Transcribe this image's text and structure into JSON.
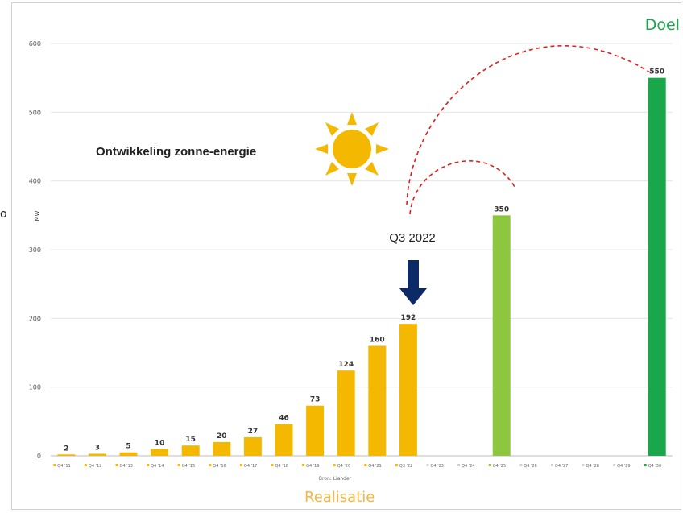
{
  "chart_data": {
    "type": "bar",
    "title": "Ontwikkeling zonne-energie",
    "ylabel": "MW",
    "ylim": [
      0,
      600
    ],
    "yticks": [
      "0",
      "100",
      "200",
      "300",
      "400",
      "500",
      "600"
    ],
    "categories": [
      "Q4 '11",
      "Q4 '12",
      "Q4 '13",
      "Q4 '14",
      "Q4 '15",
      "Q4 '16",
      "Q4 '17",
      "Q4 '18",
      "Q4 '19",
      "Q4 '20",
      "Q4 '21",
      "Q3 '22",
      "Q4 '23",
      "Q4 '24",
      "Q4 '25",
      "Q4 '26",
      "Q4 '27",
      "Q4 '28",
      "Q4 '29",
      "Q4 '30"
    ],
    "values": [
      2,
      3,
      5,
      10,
      15,
      20,
      27,
      46,
      73,
      124,
      160,
      192,
      null,
      null,
      350,
      null,
      null,
      null,
      null,
      550
    ],
    "bar_colors": [
      "#f5b800",
      "#f5b800",
      "#f5b800",
      "#f5b800",
      "#f5b800",
      "#f5b800",
      "#f5b800",
      "#f5b800",
      "#f5b800",
      "#f5b800",
      "#f5b800",
      "#f5b800",
      "#cfcfcf",
      "#cfcfcf",
      "#8dc63f",
      "#cfcfcf",
      "#cfcfcf",
      "#cfcfcf",
      "#cfcfcf",
      "#1aa64a"
    ],
    "source": "Bron: Liander",
    "annotation": "Q3 2022",
    "grid": true,
    "legend": "bottom"
  },
  "labels": {
    "doel": "Doel",
    "realisatie": "Realisatie",
    "edge_fragment": "o"
  },
  "colors": {
    "realisatie": "#f5b800",
    "prognose": "#8dc63f",
    "doel": "#1aa64a",
    "arrow": "#0b2a66",
    "arc": "#e02020",
    "sun": "#f5b800"
  },
  "icons": {
    "sun": "sun-icon",
    "arrow": "arrow-down-icon"
  }
}
